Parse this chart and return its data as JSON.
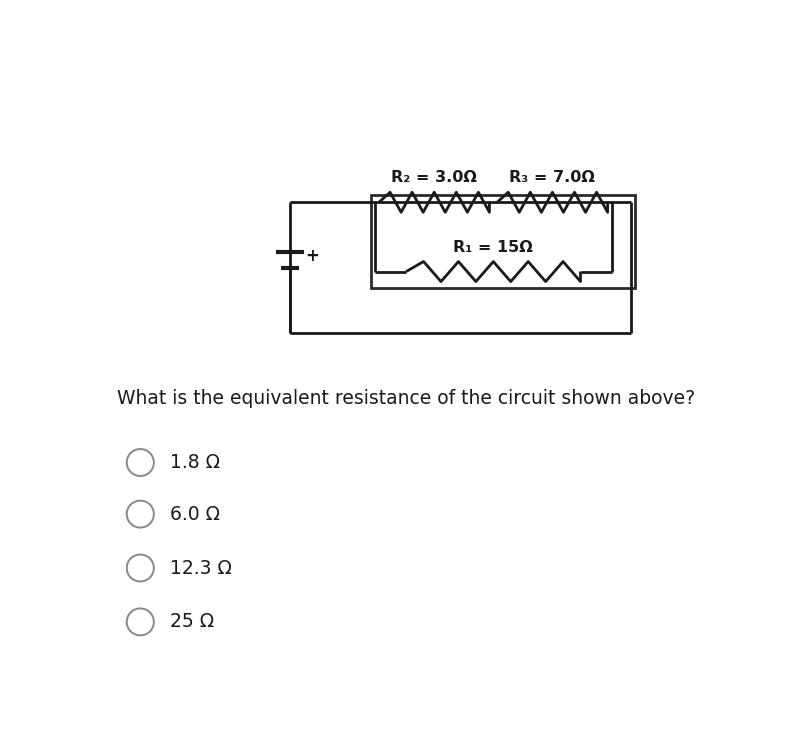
{
  "background_color": "#ffffff",
  "question_text": "What is the equivalent resistance of the circuit shown above?",
  "question_fontsize": 13.5,
  "choices": [
    "1.8 Ω",
    "6.0 Ω",
    "12.3 Ω",
    "25 Ω"
  ],
  "choice_fontsize": 13.5,
  "circuit": {
    "R1_label": "R₁ = 15Ω",
    "R2_label": "R₂ = 3.0Ω",
    "R3_label": "R₃ = 7.0Ω",
    "line_color": "#1a1a1a",
    "line_width": 2.0
  }
}
